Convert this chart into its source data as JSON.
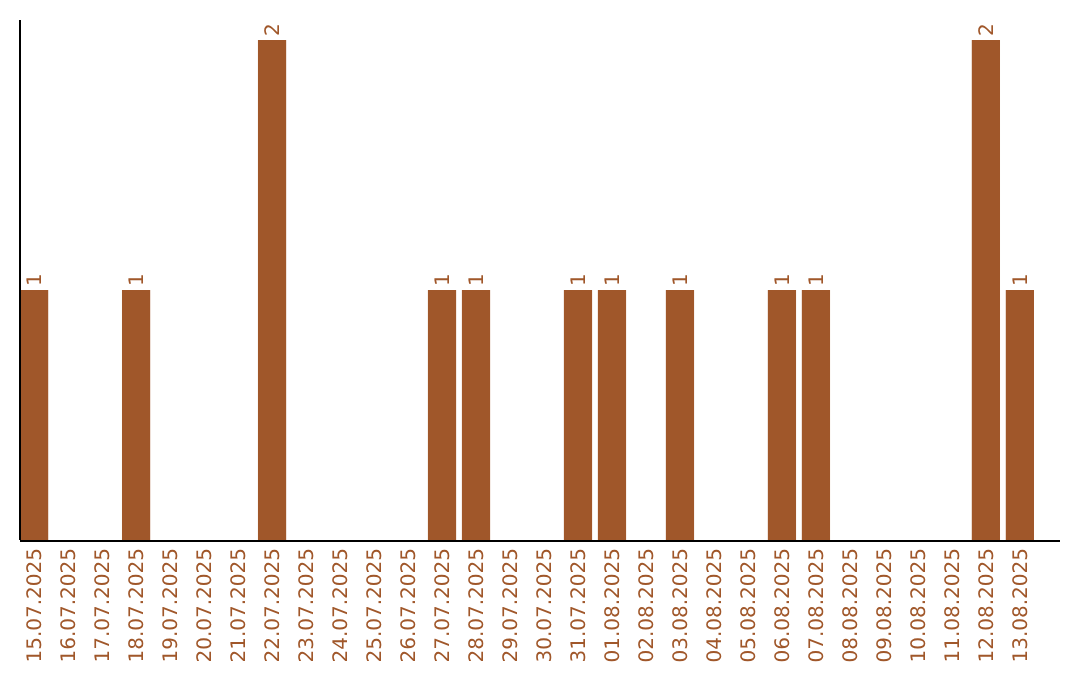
{
  "chart_data": {
    "type": "bar",
    "categories": [
      "15.07.2025",
      "16.07.2025",
      "17.07.2025",
      "18.07.2025",
      "19.07.2025",
      "20.07.2025",
      "21.07.2025",
      "22.07.2025",
      "23.07.2025",
      "24.07.2025",
      "25.07.2025",
      "26.07.2025",
      "27.07.2025",
      "28.07.2025",
      "29.07.2025",
      "30.07.2025",
      "31.07.2025",
      "01.08.2025",
      "02.08.2025",
      "03.08.2025",
      "04.08.2025",
      "05.08.2025",
      "06.08.2025",
      "07.08.2025",
      "08.08.2025",
      "09.08.2025",
      "10.08.2025",
      "11.08.2025",
      "12.08.2025",
      "13.08.2025"
    ],
    "values": [
      1,
      0,
      0,
      1,
      0,
      0,
      0,
      2,
      0,
      0,
      0,
      0,
      1,
      1,
      0,
      0,
      1,
      1,
      0,
      1,
      0,
      0,
      1,
      1,
      0,
      0,
      0,
      0,
      2,
      1
    ],
    "value_labels": [
      "1",
      null,
      null,
      "1",
      null,
      null,
      null,
      "2",
      null,
      null,
      null,
      null,
      "1",
      "1",
      null,
      null,
      "1",
      "1",
      null,
      "1",
      null,
      null,
      "1",
      "1",
      null,
      null,
      null,
      null,
      "2",
      "1"
    ],
    "color": "#a0572a"
  }
}
